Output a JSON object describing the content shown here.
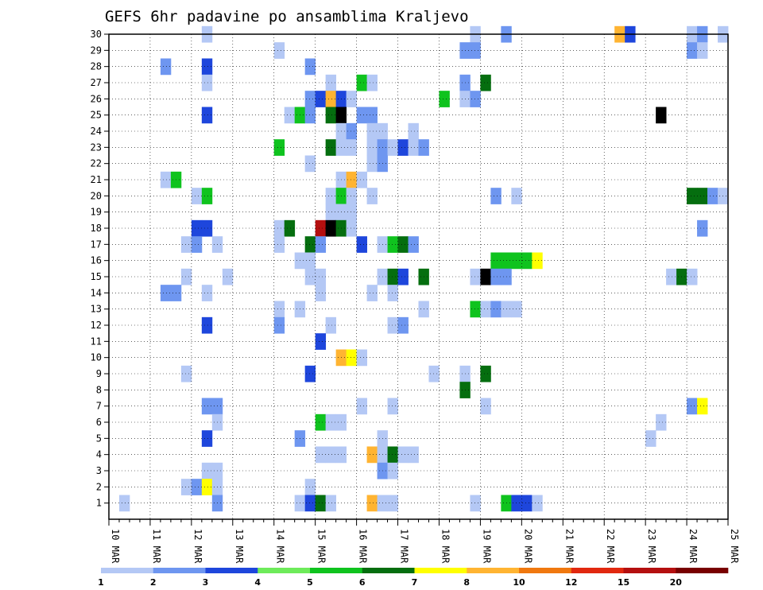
{
  "chart_data": {
    "type": "heatmap",
    "title": "GEFS 6hr padavine po ansamblima Kraljevo",
    "y_ticks": [
      "1",
      "2",
      "3",
      "4",
      "5",
      "6",
      "7",
      "8",
      "9",
      "10",
      "11",
      "12",
      "13",
      "14",
      "15",
      "16",
      "17",
      "18",
      "19",
      "20",
      "21",
      "22",
      "23",
      "24",
      "25",
      "26",
      "27",
      "28",
      "29",
      "30"
    ],
    "x_ticks": [
      "10 MAR",
      "11 MAR",
      "12 MAR",
      "13 MAR",
      "14 MAR",
      "15 MAR",
      "16 MAR",
      "17 MAR",
      "18 MAR",
      "19 MAR",
      "20 MAR",
      "21 MAR",
      "22 MAR",
      "23 MAR",
      "24 MAR",
      "25 MAR"
    ],
    "x_range": [
      0,
      60
    ],
    "y_range": [
      0,
      30
    ],
    "grid": true,
    "legend": {
      "position": "bottom",
      "labels": [
        "1",
        "2",
        "3",
        "4",
        "5",
        "6",
        "7",
        "8",
        "10",
        "12",
        "15",
        "20"
      ],
      "colors": [
        "#b4c8f5",
        "#6e96f0",
        "#1e46dc",
        "#6eeb5a",
        "#0fc31e",
        "#056e0f",
        "#ffff00",
        "#ffb432",
        "#f0780f",
        "#e1280f",
        "#b40f0f",
        "#780000"
      ]
    },
    "cells": [
      [
        30,
        10,
        1
      ],
      [
        30,
        36,
        1
      ],
      [
        30,
        39,
        2
      ],
      [
        29,
        17,
        1
      ],
      [
        30,
        50,
        8
      ],
      [
        30,
        51,
        3
      ],
      [
        30,
        57,
        1
      ],
      [
        30,
        58,
        2
      ],
      [
        30,
        60,
        1
      ],
      [
        29,
        57,
        2
      ],
      [
        29,
        58,
        1
      ],
      [
        29,
        35,
        2
      ],
      [
        29,
        36,
        2
      ],
      [
        28,
        6,
        2
      ],
      [
        28,
        10,
        3
      ],
      [
        28,
        20,
        2
      ],
      [
        27,
        10,
        1
      ],
      [
        27,
        22,
        1
      ],
      [
        27,
        25,
        5
      ],
      [
        27,
        26,
        1
      ],
      [
        27,
        35,
        2
      ],
      [
        27,
        37,
        6
      ],
      [
        26,
        20,
        2
      ],
      [
        26,
        21,
        3
      ],
      [
        26,
        22,
        8
      ],
      [
        26,
        23,
        3
      ],
      [
        26,
        24,
        1
      ],
      [
        26,
        33,
        5
      ],
      [
        26,
        35,
        1
      ],
      [
        26,
        36,
        2
      ],
      [
        25,
        10,
        3
      ],
      [
        25,
        18,
        1
      ],
      [
        25,
        19,
        5
      ],
      [
        25,
        20,
        2
      ],
      [
        25,
        22,
        6
      ],
      [
        25,
        23,
        13
      ],
      [
        25,
        25,
        2
      ],
      [
        25,
        26,
        2
      ],
      [
        25,
        54,
        14
      ],
      [
        24,
        23,
        1
      ],
      [
        24,
        24,
        2
      ],
      [
        24,
        26,
        1
      ],
      [
        24,
        27,
        1
      ],
      [
        24,
        30,
        1
      ],
      [
        23,
        17,
        5
      ],
      [
        23,
        22,
        6
      ],
      [
        23,
        23,
        1
      ],
      [
        23,
        24,
        1
      ],
      [
        23,
        26,
        1
      ],
      [
        23,
        27,
        2
      ],
      [
        23,
        28,
        1
      ],
      [
        23,
        29,
        3
      ],
      [
        23,
        30,
        1
      ],
      [
        23,
        31,
        2
      ],
      [
        22,
        20,
        1
      ],
      [
        22,
        26,
        1
      ],
      [
        22,
        27,
        2
      ],
      [
        21,
        6,
        1
      ],
      [
        21,
        7,
        5
      ],
      [
        21,
        23,
        1
      ],
      [
        21,
        24,
        8
      ],
      [
        21,
        25,
        1
      ],
      [
        20,
        9,
        1
      ],
      [
        20,
        10,
        5
      ],
      [
        20,
        22,
        1
      ],
      [
        20,
        23,
        5
      ],
      [
        20,
        24,
        1
      ],
      [
        20,
        26,
        1
      ],
      [
        20,
        38,
        2
      ],
      [
        20,
        40,
        1
      ],
      [
        20,
        57,
        6
      ],
      [
        20,
        58,
        6
      ],
      [
        20,
        59,
        2
      ],
      [
        20,
        60,
        1
      ],
      [
        19,
        22,
        1
      ],
      [
        19,
        23,
        1
      ],
      [
        19,
        24,
        1
      ],
      [
        18,
        9,
        3
      ],
      [
        18,
        10,
        3
      ],
      [
        18,
        17,
        1
      ],
      [
        18,
        18,
        6
      ],
      [
        18,
        21,
        11
      ],
      [
        18,
        22,
        16
      ],
      [
        18,
        23,
        6
      ],
      [
        18,
        24,
        1
      ],
      [
        18,
        58,
        2
      ],
      [
        17,
        8,
        1
      ],
      [
        17,
        9,
        2
      ],
      [
        17,
        11,
        1
      ],
      [
        17,
        17,
        1
      ],
      [
        17,
        20,
        6
      ],
      [
        17,
        21,
        2
      ],
      [
        17,
        25,
        3
      ],
      [
        17,
        27,
        1
      ],
      [
        17,
        28,
        5
      ],
      [
        17,
        29,
        6
      ],
      [
        17,
        30,
        2
      ],
      [
        16,
        19,
        1
      ],
      [
        16,
        20,
        1
      ],
      [
        16,
        38,
        5
      ],
      [
        16,
        39,
        5
      ],
      [
        16,
        40,
        5
      ],
      [
        16,
        41,
        5
      ],
      [
        16,
        42,
        7
      ],
      [
        15,
        8,
        1
      ],
      [
        15,
        12,
        1
      ],
      [
        15,
        20,
        1
      ],
      [
        15,
        21,
        1
      ],
      [
        15,
        27,
        1
      ],
      [
        15,
        28,
        6
      ],
      [
        15,
        29,
        3
      ],
      [
        15,
        31,
        6
      ],
      [
        15,
        36,
        1
      ],
      [
        15,
        37,
        13
      ],
      [
        15,
        38,
        2
      ],
      [
        15,
        39,
        2
      ],
      [
        15,
        55,
        1
      ],
      [
        15,
        56,
        6
      ],
      [
        15,
        57,
        1
      ],
      [
        14,
        6,
        2
      ],
      [
        14,
        7,
        2
      ],
      [
        14,
        10,
        1
      ],
      [
        14,
        21,
        1
      ],
      [
        14,
        26,
        1
      ],
      [
        14,
        28,
        1
      ],
      [
        13,
        17,
        1
      ],
      [
        13,
        19,
        1
      ],
      [
        13,
        31,
        1
      ],
      [
        13,
        36,
        5
      ],
      [
        13,
        37,
        1
      ],
      [
        13,
        38,
        2
      ],
      [
        13,
        39,
        1
      ],
      [
        13,
        40,
        1
      ],
      [
        12,
        10,
        3
      ],
      [
        12,
        17,
        2
      ],
      [
        12,
        22,
        1
      ],
      [
        12,
        28,
        1
      ],
      [
        12,
        29,
        2
      ],
      [
        11,
        21,
        3
      ],
      [
        10,
        23,
        8
      ],
      [
        10,
        24,
        7
      ],
      [
        10,
        25,
        1
      ],
      [
        9,
        8,
        1
      ],
      [
        9,
        20,
        3
      ],
      [
        9,
        32,
        1
      ],
      [
        9,
        35,
        1
      ],
      [
        9,
        37,
        6
      ],
      [
        8,
        35,
        6
      ],
      [
        7,
        10,
        2
      ],
      [
        7,
        11,
        2
      ],
      [
        7,
        25,
        1
      ],
      [
        7,
        28,
        1
      ],
      [
        7,
        37,
        1
      ],
      [
        7,
        57,
        2
      ],
      [
        7,
        58,
        7
      ],
      [
        6,
        11,
        1
      ],
      [
        6,
        21,
        5
      ],
      [
        6,
        22,
        1
      ],
      [
        6,
        23,
        1
      ],
      [
        6,
        54,
        1
      ],
      [
        5,
        10,
        3
      ],
      [
        5,
        19,
        2
      ],
      [
        5,
        27,
        1
      ],
      [
        5,
        53,
        1
      ],
      [
        4,
        21,
        1
      ],
      [
        4,
        22,
        1
      ],
      [
        4,
        23,
        1
      ],
      [
        4,
        26,
        8
      ],
      [
        4,
        27,
        1
      ],
      [
        4,
        28,
        6
      ],
      [
        4,
        29,
        1
      ],
      [
        4,
        30,
        1
      ],
      [
        3,
        10,
        1
      ],
      [
        3,
        11,
        1
      ],
      [
        3,
        27,
        2
      ],
      [
        3,
        28,
        1
      ],
      [
        2,
        8,
        1
      ],
      [
        2,
        9,
        2
      ],
      [
        2,
        10,
        7
      ],
      [
        2,
        11,
        1
      ],
      [
        2,
        20,
        1
      ],
      [
        1,
        2,
        1
      ],
      [
        1,
        11,
        2
      ],
      [
        1,
        19,
        1
      ],
      [
        1,
        20,
        3
      ],
      [
        1,
        21,
        6
      ],
      [
        1,
        22,
        1
      ],
      [
        1,
        26,
        8
      ],
      [
        1,
        27,
        1
      ],
      [
        1,
        28,
        1
      ],
      [
        1,
        36,
        1
      ],
      [
        1,
        39,
        5
      ],
      [
        1,
        40,
        3
      ],
      [
        1,
        41,
        3
      ],
      [
        1,
        42,
        1
      ]
    ]
  }
}
